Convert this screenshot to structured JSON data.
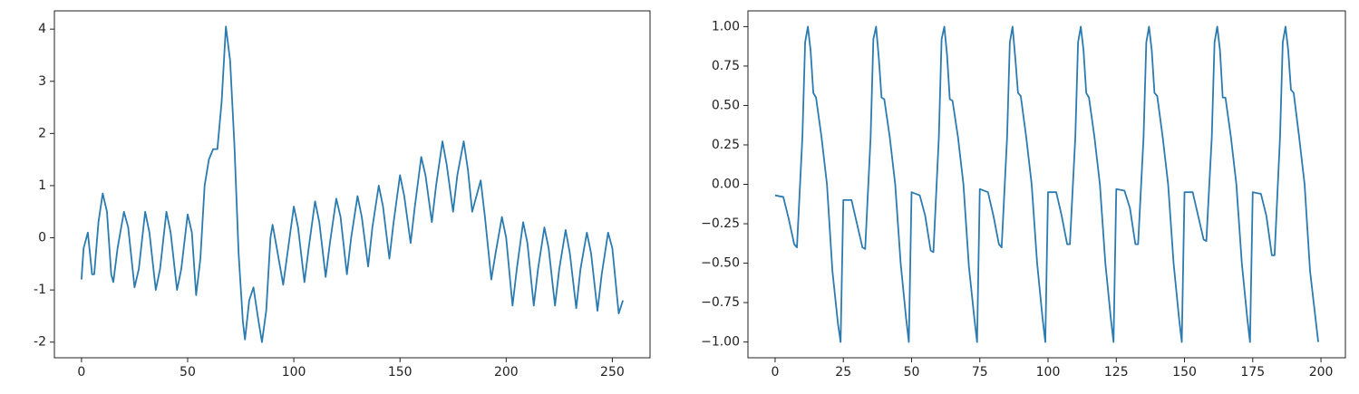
{
  "chart_data": [
    {
      "type": "line",
      "x": [
        0,
        1,
        3,
        5,
        6,
        8,
        10,
        12,
        14,
        15,
        17,
        20,
        22,
        25,
        27,
        30,
        32,
        35,
        37,
        40,
        42,
        45,
        47,
        50,
        52,
        54,
        56,
        58,
        60,
        62,
        64,
        66,
        68,
        70,
        72,
        74,
        76,
        77,
        79,
        81,
        83,
        85,
        87,
        89,
        90,
        92,
        95,
        97,
        100,
        102,
        105,
        107,
        110,
        112,
        115,
        117,
        120,
        122,
        125,
        127,
        130,
        132,
        135,
        137,
        140,
        142,
        145,
        147,
        150,
        152,
        155,
        157,
        160,
        162,
        165,
        167,
        170,
        172,
        175,
        177,
        180,
        182,
        184,
        186,
        188,
        190,
        193,
        195,
        198,
        200,
        203,
        205,
        208,
        210,
        213,
        215,
        218,
        220,
        223,
        225,
        228,
        230,
        233,
        235,
        238,
        240,
        243,
        245,
        248,
        250,
        253,
        255
      ],
      "series": [
        {
          "color": "#2b7bb0",
          "values": [
            -0.8,
            -0.2,
            0.1,
            -0.7,
            -0.7,
            0.3,
            0.85,
            0.5,
            -0.7,
            -0.85,
            -0.2,
            0.5,
            0.2,
            -0.95,
            -0.6,
            0.5,
            0.1,
            -1.0,
            -0.6,
            0.5,
            0.1,
            -1.0,
            -0.6,
            0.45,
            0.1,
            -1.1,
            -0.4,
            1.0,
            1.5,
            1.7,
            1.7,
            2.6,
            4.05,
            3.4,
            1.8,
            -0.3,
            -1.6,
            -1.95,
            -1.2,
            -0.95,
            -1.5,
            -2.0,
            -1.4,
            0.0,
            0.25,
            -0.2,
            -0.9,
            -0.3,
            0.6,
            0.2,
            -0.85,
            -0.2,
            0.7,
            0.3,
            -0.75,
            -0.1,
            0.75,
            0.4,
            -0.7,
            0.0,
            0.8,
            0.4,
            -0.55,
            0.2,
            1.0,
            0.6,
            -0.4,
            0.3,
            1.2,
            0.8,
            -0.1,
            0.6,
            1.55,
            1.2,
            0.3,
            1.0,
            1.85,
            1.4,
            0.5,
            1.2,
            1.85,
            1.3,
            0.5,
            0.8,
            1.1,
            0.4,
            -0.8,
            -0.3,
            0.4,
            0.0,
            -1.3,
            -0.6,
            0.3,
            -0.1,
            -1.3,
            -0.6,
            0.2,
            -0.2,
            -1.3,
            -0.6,
            0.15,
            -0.3,
            -1.35,
            -0.6,
            0.1,
            -0.3,
            -1.4,
            -0.7,
            0.1,
            -0.2,
            -1.45,
            -1.2
          ]
        }
      ],
      "xlim": [
        -12.75,
        267.75
      ],
      "xticks": [
        0,
        50,
        100,
        150,
        200,
        250
      ],
      "ylim": [
        -2.3,
        4.35
      ],
      "yticks": [
        -2,
        -1,
        0,
        1,
        2,
        3,
        4
      ]
    },
    {
      "type": "line",
      "x": [
        0,
        3,
        5,
        7,
        8,
        10,
        11,
        12,
        13,
        14,
        15,
        17,
        19,
        21,
        23,
        24,
        25,
        28,
        30,
        32,
        33,
        35,
        36,
        37,
        38,
        39,
        40,
        42,
        44,
        46,
        48,
        49,
        50,
        53,
        55,
        57,
        58,
        60,
        61,
        62,
        63,
        64,
        65,
        67,
        69,
        71,
        73,
        74,
        75,
        78,
        80,
        82,
        83,
        85,
        86,
        87,
        88,
        89,
        90,
        92,
        94,
        96,
        98,
        99,
        100,
        103,
        105,
        107,
        108,
        110,
        111,
        112,
        113,
        114,
        115,
        117,
        119,
        121,
        123,
        124,
        125,
        128,
        130,
        132,
        133,
        135,
        136,
        137,
        138,
        139,
        140,
        142,
        144,
        146,
        148,
        149,
        150,
        153,
        155,
        157,
        158,
        160,
        161,
        162,
        163,
        164,
        165,
        167,
        169,
        171,
        173,
        174,
        175,
        178,
        180,
        182,
        183,
        185,
        186,
        187,
        188,
        189,
        190,
        192,
        194,
        196,
        198,
        199
      ],
      "series": [
        {
          "color": "#2b7bb0",
          "values": [
            -0.07,
            -0.08,
            -0.22,
            -0.38,
            -0.4,
            0.3,
            0.9,
            1.0,
            0.85,
            0.58,
            0.55,
            0.3,
            0.0,
            -0.55,
            -0.88,
            -1.0,
            -0.1,
            -0.1,
            -0.25,
            -0.4,
            -0.41,
            0.3,
            0.92,
            1.0,
            0.8,
            0.55,
            0.54,
            0.3,
            0.0,
            -0.5,
            -0.85,
            -1.0,
            -0.05,
            -0.07,
            -0.2,
            -0.42,
            -0.43,
            0.3,
            0.92,
            1.0,
            0.82,
            0.54,
            0.53,
            0.3,
            0.0,
            -0.52,
            -0.85,
            -1.0,
            -0.03,
            -0.05,
            -0.2,
            -0.38,
            -0.4,
            0.3,
            0.9,
            1.0,
            0.8,
            0.58,
            0.56,
            0.3,
            0.0,
            -0.5,
            -0.85,
            -1.0,
            -0.05,
            -0.05,
            -0.2,
            -0.38,
            -0.38,
            0.3,
            0.9,
            1.0,
            0.85,
            0.58,
            0.55,
            0.3,
            0.0,
            -0.5,
            -0.85,
            -1.0,
            -0.03,
            -0.04,
            -0.15,
            -0.38,
            -0.38,
            0.3,
            0.9,
            1.0,
            0.85,
            0.58,
            0.56,
            0.3,
            0.0,
            -0.5,
            -0.85,
            -1.0,
            -0.05,
            -0.05,
            -0.2,
            -0.35,
            -0.36,
            0.3,
            0.9,
            1.0,
            0.85,
            0.55,
            0.55,
            0.3,
            0.0,
            -0.5,
            -0.85,
            -1.0,
            -0.05,
            -0.06,
            -0.2,
            -0.45,
            -0.45,
            0.3,
            0.9,
            1.0,
            0.85,
            0.6,
            0.58,
            0.3,
            0.0,
            -0.55,
            -0.85,
            -1.0
          ]
        }
      ],
      "xlim": [
        -9.95,
        208.95
      ],
      "xticks": [
        0,
        25,
        50,
        75,
        100,
        125,
        150,
        175,
        200
      ],
      "ylim": [
        -1.1,
        1.1
      ],
      "yticks": [
        {
          "value": -1,
          "label": "−1.00"
        },
        {
          "value": -0.75,
          "label": "−0.75"
        },
        {
          "value": -0.5,
          "label": "−0.50"
        },
        {
          "value": -0.25,
          "label": "−0.25"
        },
        {
          "value": 0,
          "label": "0.00"
        },
        {
          "value": 0.25,
          "label": "0.25"
        },
        {
          "value": 0.5,
          "label": "0.50"
        },
        {
          "value": 0.75,
          "label": "0.75"
        },
        {
          "value": 1,
          "label": "1.00"
        }
      ]
    }
  ]
}
